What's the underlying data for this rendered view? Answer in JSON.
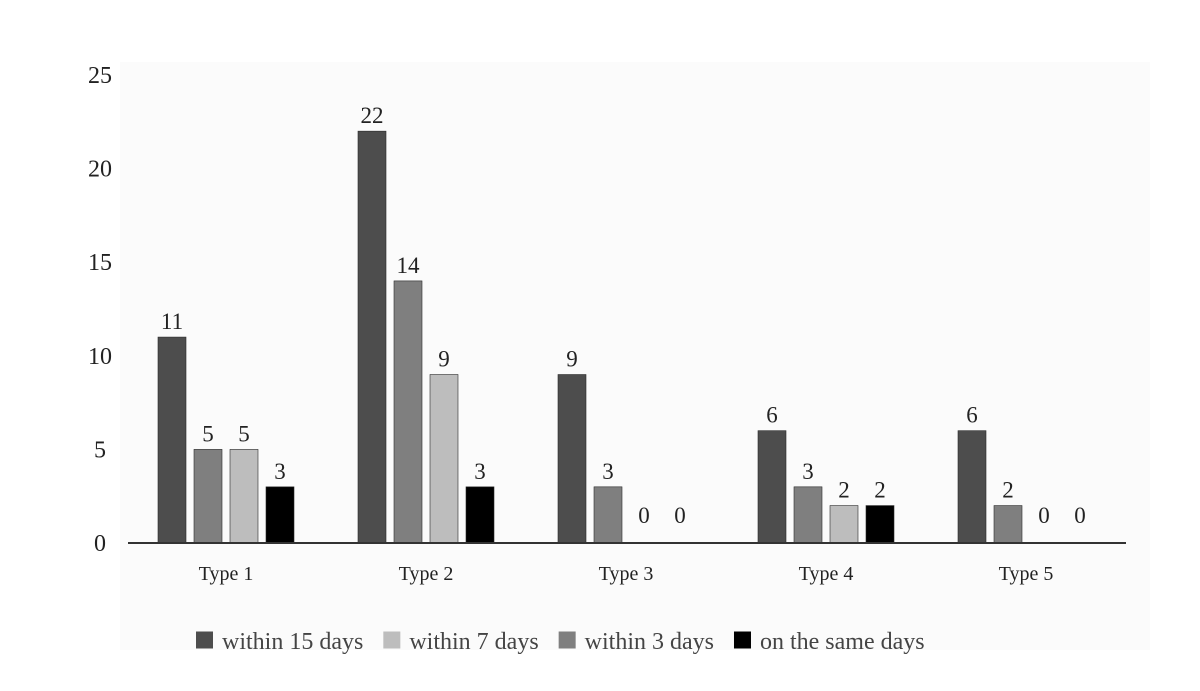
{
  "chart_data": {
    "type": "bar",
    "title": "",
    "xlabel": "",
    "ylabel": "",
    "categories": [
      "Type 1",
      "Type 2",
      "Type 3",
      "Type 4",
      "Type 5"
    ],
    "ylim": [
      0,
      25
    ],
    "yticks": [
      "0",
      "5",
      "10",
      "15",
      "20",
      "25"
    ],
    "series": [
      {
        "name": "within 15 days",
        "color": "#4d4d4d",
        "values": [
          11,
          22,
          9,
          6,
          6
        ]
      },
      {
        "name": "within 3 days",
        "color": "#7f7f7f",
        "values": [
          5,
          14,
          3,
          3,
          2
        ]
      },
      {
        "name": "within 7 days",
        "color": "#bdbdbd",
        "values": [
          5,
          9,
          0,
          2,
          0
        ]
      },
      {
        "name": "on the same days",
        "color": "#000000",
        "values": [
          3,
          3,
          0,
          2,
          0
        ]
      }
    ],
    "legend": {
      "position": "bottom",
      "order": [
        "within 15 days",
        "within 7 days",
        "within 3 days",
        "on the same days"
      ]
    },
    "grid": false,
    "background_color": "#fbfbfb"
  }
}
